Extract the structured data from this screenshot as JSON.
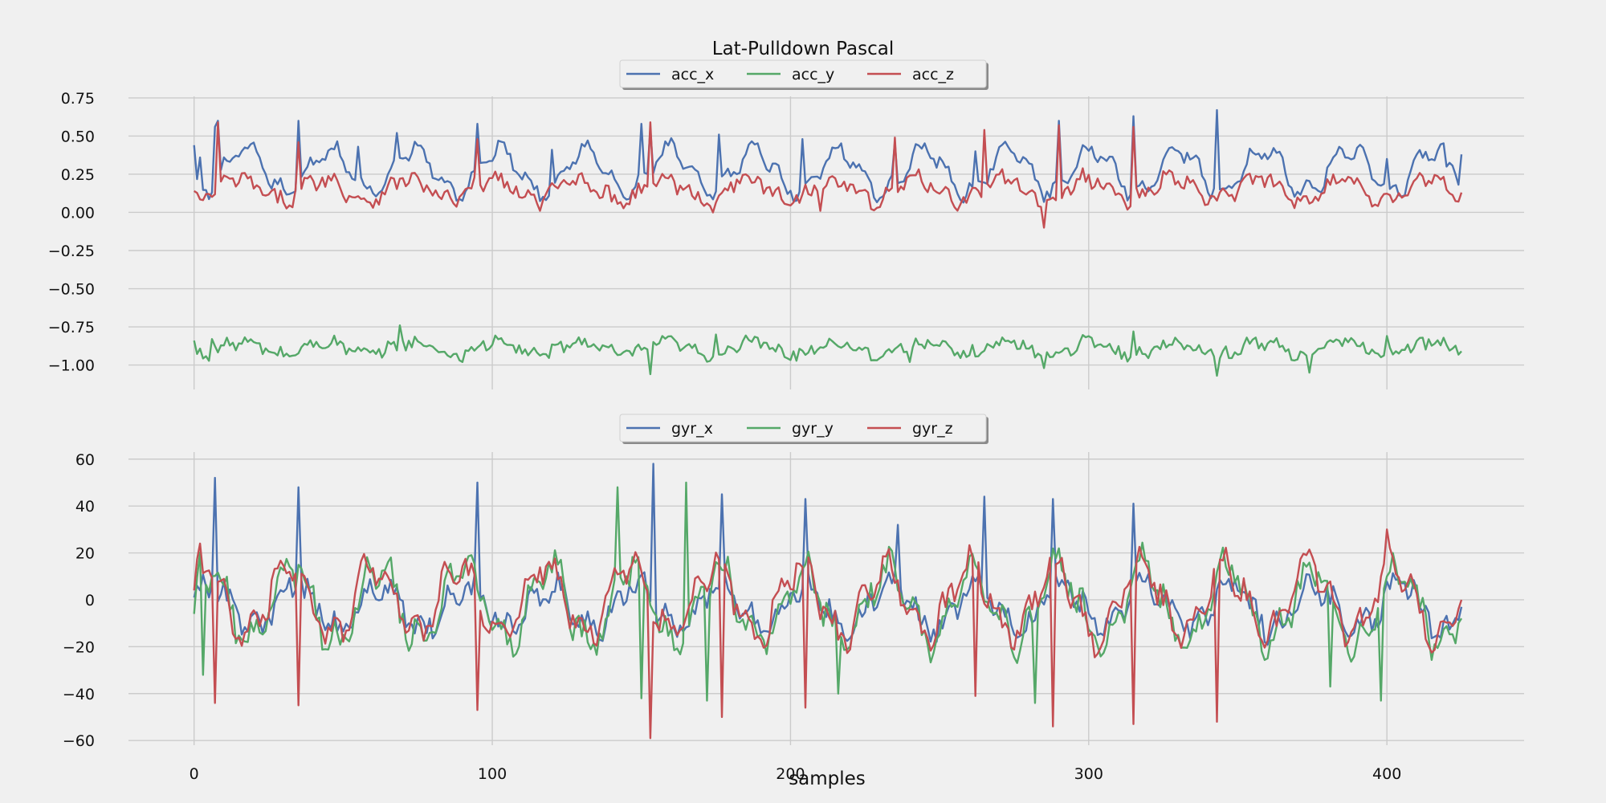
{
  "chart_data": [
    {
      "type": "line",
      "title": "Lat-Pulldown Pascal",
      "xlabel": "",
      "ylabel": "",
      "xlim": [
        -22,
        446
      ],
      "ylim": [
        -1.16,
        0.76
      ],
      "xticks": [
        0,
        100,
        200,
        300,
        400
      ],
      "yticks": [
        -1.0,
        -0.75,
        -0.5,
        -0.25,
        0.0,
        0.25,
        0.5,
        0.75
      ],
      "ytick_labels": [
        "−1.00",
        "−0.75",
        "−0.50",
        "−0.25",
        "0.00",
        "0.25",
        "0.50",
        "0.75"
      ],
      "legend": "top-center",
      "grid": true,
      "n_samples": 426,
      "series": [
        {
          "name": "acc_x",
          "color": "#4c72b0",
          "base": 0.27,
          "amp": 0.14,
          "noise": 0.035,
          "keypoints": [
            [
              0,
              0.44
            ],
            [
              2,
              0.36
            ],
            [
              7,
              0.56
            ],
            [
              8,
              0.6
            ],
            [
              35,
              0.6
            ],
            [
              55,
              0.43
            ],
            [
              68,
              0.52
            ],
            [
              95,
              0.58
            ],
            [
              120,
              0.41
            ],
            [
              150,
              0.58
            ],
            [
              153,
              0.55
            ],
            [
              176,
              0.51
            ],
            [
              204,
              0.48
            ],
            [
              235,
              0.46
            ],
            [
              262,
              0.4
            ],
            [
              290,
              0.6
            ],
            [
              315,
              0.63
            ],
            [
              343,
              0.67
            ],
            [
              365,
              0.36
            ],
            [
              400,
              0.35
            ],
            [
              420,
              0.3
            ],
            [
              425,
              0.38
            ]
          ]
        },
        {
          "name": "acc_y",
          "color": "#55a868",
          "base": -0.89,
          "amp": 0.04,
          "noise": 0.04,
          "keypoints": [
            [
              0,
              -0.84
            ],
            [
              6,
              -0.83
            ],
            [
              69,
              -0.74
            ],
            [
              90,
              -0.98
            ],
            [
              153,
              -1.06
            ],
            [
              175,
              -0.8
            ],
            [
              240,
              -0.98
            ],
            [
              285,
              -1.02
            ],
            [
              315,
              -0.78
            ],
            [
              343,
              -1.07
            ],
            [
              374,
              -1.05
            ],
            [
              400,
              -0.81
            ],
            [
              425,
              -0.91
            ]
          ]
        },
        {
          "name": "acc_z",
          "color": "#c44e52",
          "base": 0.15,
          "amp": 0.07,
          "noise": 0.05,
          "keypoints": [
            [
              0,
              0.14
            ],
            [
              3,
              0.08
            ],
            [
              8,
              0.59
            ],
            [
              35,
              0.46
            ],
            [
              95,
              0.48
            ],
            [
              153,
              0.59
            ],
            [
              174,
              0.0
            ],
            [
              210,
              0.01
            ],
            [
              235,
              0.49
            ],
            [
              265,
              0.54
            ],
            [
              285,
              -0.1
            ],
            [
              290,
              0.57
            ],
            [
              315,
              0.56
            ],
            [
              425,
              0.13
            ]
          ]
        }
      ]
    },
    {
      "type": "line",
      "title": "",
      "xlabel": "samples",
      "ylabel": "",
      "xlim": [
        -22,
        446
      ],
      "ylim": [
        -62,
        63
      ],
      "xticks": [
        0,
        100,
        200,
        300,
        400
      ],
      "yticks": [
        -60,
        -40,
        -20,
        0,
        20,
        40,
        60
      ],
      "ytick_labels": [
        "−60",
        "−40",
        "−20",
        "0",
        "20",
        "40",
        "60"
      ],
      "legend": "top-center",
      "grid": true,
      "n_samples": 426,
      "series": [
        {
          "name": "gyr_x",
          "color": "#4c72b0",
          "base": -3,
          "amp": 9,
          "noise": 5,
          "keypoints": [
            [
              0,
              1
            ],
            [
              7,
              52
            ],
            [
              35,
              48
            ],
            [
              95,
              50
            ],
            [
              154,
              58
            ],
            [
              177,
              45
            ],
            [
              205,
              43
            ],
            [
              236,
              32
            ],
            [
              265,
              44
            ],
            [
              288,
              43
            ],
            [
              315,
              41
            ],
            [
              425,
              -3
            ]
          ]
        },
        {
          "name": "gyr_y",
          "color": "#55a868",
          "base": -2,
          "amp": 16,
          "noise": 6,
          "keypoints": [
            [
              0,
              -6
            ],
            [
              3,
              -32
            ],
            [
              142,
              48
            ],
            [
              150,
              -42
            ],
            [
              165,
              50
            ],
            [
              172,
              -43
            ],
            [
              216,
              -40
            ],
            [
              282,
              -44
            ],
            [
              381,
              -37
            ],
            [
              398,
              -43
            ],
            [
              426,
              2
            ]
          ]
        },
        {
          "name": "gyr_z",
          "color": "#c44e52",
          "base": 0,
          "amp": 15,
          "noise": 5,
          "keypoints": [
            [
              0,
              4
            ],
            [
              2,
              24
            ],
            [
              7,
              -44
            ],
            [
              35,
              -45
            ],
            [
              95,
              -47
            ],
            [
              153,
              -59
            ],
            [
              177,
              -50
            ],
            [
              205,
              -46
            ],
            [
              262,
              -41
            ],
            [
              288,
              -54
            ],
            [
              315,
              -53
            ],
            [
              343,
              -52
            ],
            [
              400,
              30
            ],
            [
              425,
              0
            ]
          ]
        }
      ]
    }
  ]
}
